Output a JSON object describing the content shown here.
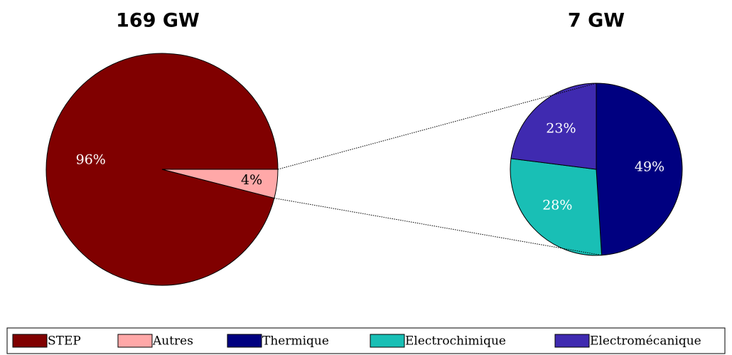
{
  "chart_data": [
    {
      "type": "pie",
      "title": "169 GW",
      "categories": [
        "STEP",
        "Autres"
      ],
      "values": [
        96,
        4
      ],
      "value_labels": [
        "96%",
        "4%"
      ],
      "colors": [
        "#800000",
        "#ffa8a8"
      ]
    },
    {
      "type": "pie",
      "title": "7 GW",
      "categories": [
        "Thermique",
        "Electrochimique",
        "Electromécanique"
      ],
      "values": [
        49,
        28,
        23
      ],
      "value_labels": [
        "49%",
        "28%",
        "23%"
      ],
      "colors": [
        "#000080",
        "#19bfb5",
        "#3f2ab0"
      ]
    }
  ]
}
